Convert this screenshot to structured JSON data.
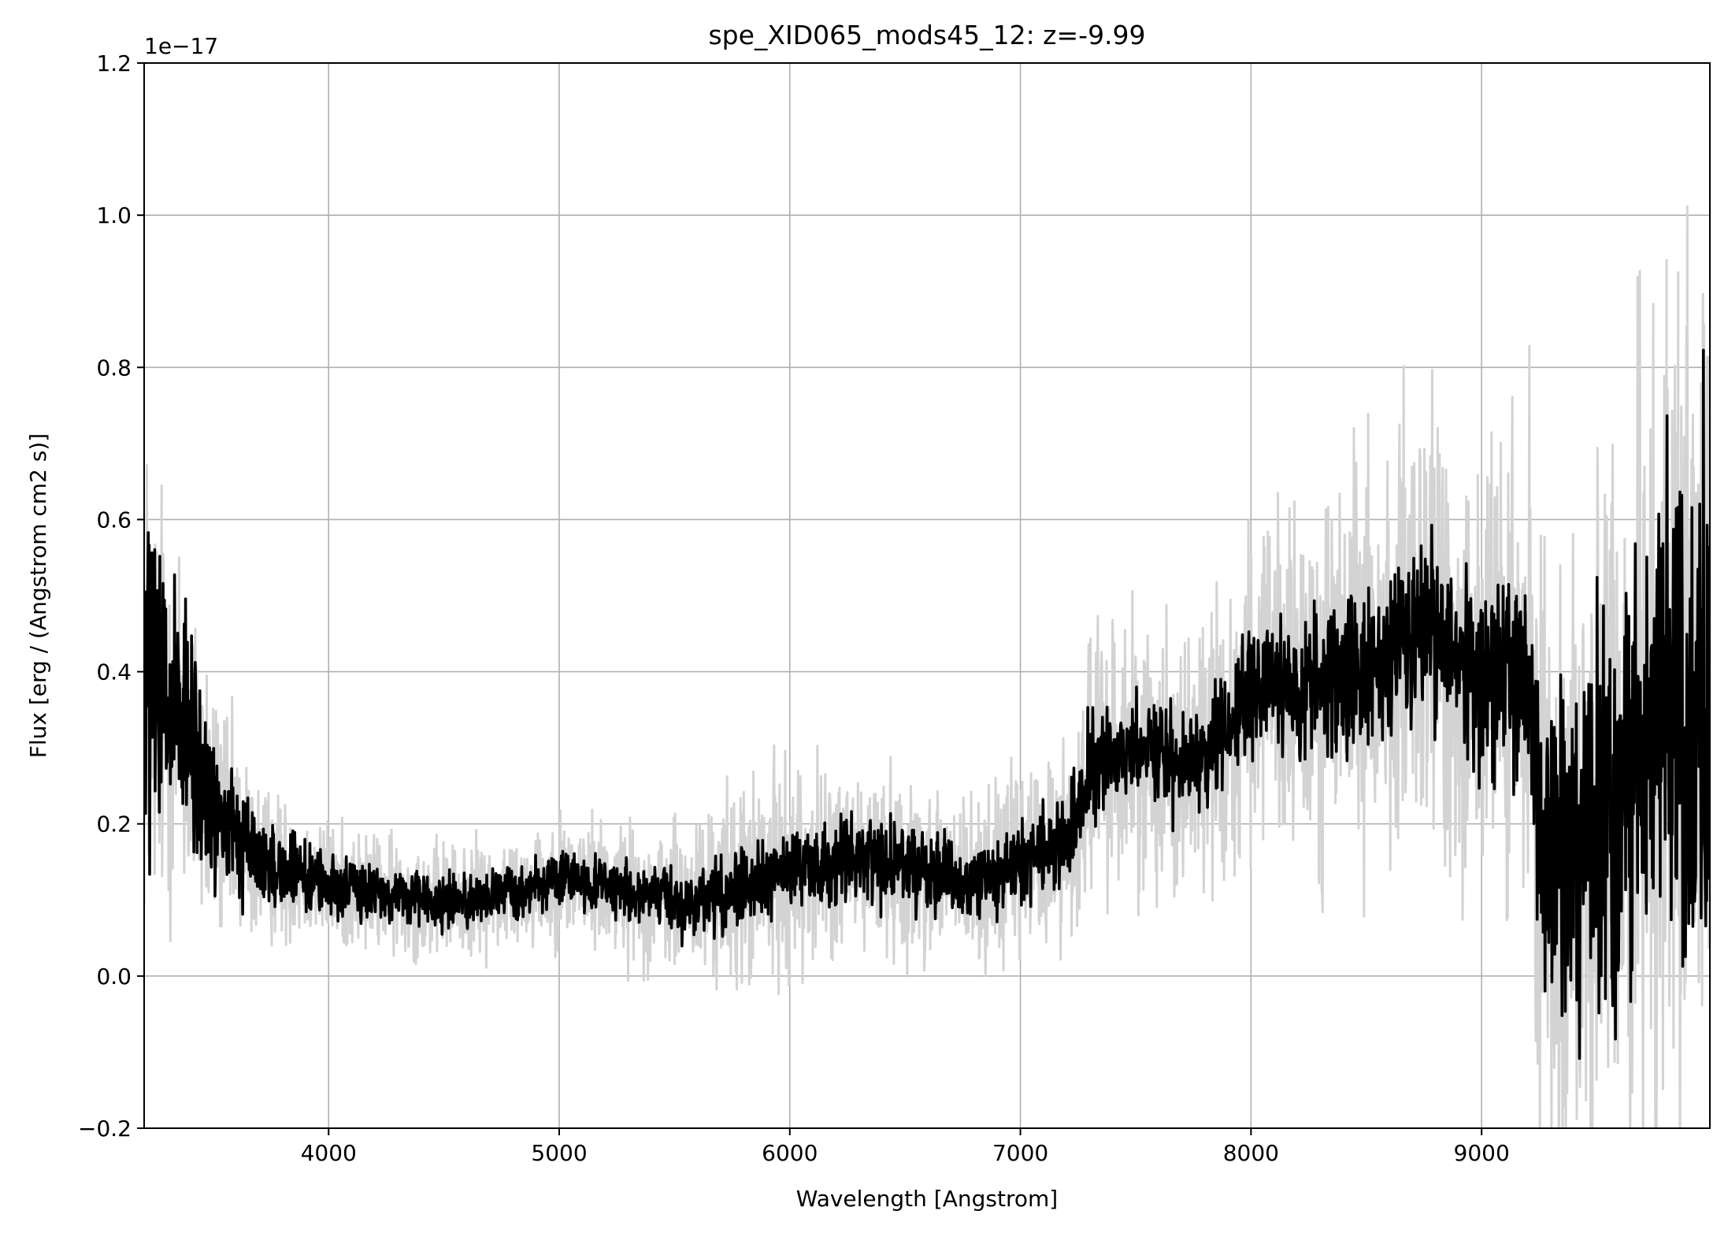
{
  "chart_data": {
    "type": "line",
    "title": "spe_XID065_mods45_12: z=-9.99",
    "xlabel": "Wavelength [Angstrom]",
    "ylabel": "Flux [erg / (Angstrom cm2 s)]",
    "y_offset_text": "1e−17",
    "xlim": [
      3200,
      9990
    ],
    "ylim": [
      -0.2,
      1.2
    ],
    "x_ticks": [
      4000,
      5000,
      6000,
      7000,
      8000,
      9000
    ],
    "y_ticks": [
      -0.2,
      0.0,
      0.2,
      0.4,
      0.6,
      0.8,
      1.0,
      1.2
    ],
    "x_tick_labels": [
      "4000",
      "5000",
      "6000",
      "7000",
      "8000",
      "9000"
    ],
    "y_tick_labels": [
      "−0.2",
      "0.0",
      "0.2",
      "0.4",
      "0.6",
      "0.8",
      "1.0",
      "1.2"
    ],
    "grid": true,
    "series": [
      {
        "role": "noisy-spectrum",
        "color": "#d3d3d3",
        "x": [
          3200,
          3300,
          3400,
          3500,
          3600,
          3700,
          3800,
          3900,
          4000,
          4200,
          4400,
          4600,
          4800,
          5000,
          5200,
          5400,
          5600,
          5800,
          6000,
          6200,
          6400,
          6600,
          6800,
          7000,
          7200,
          7250,
          7300,
          7500,
          7700,
          7900,
          8000,
          8200,
          8400,
          8600,
          8800,
          9000,
          9200,
          9250,
          9400,
          9600,
          9800,
          9990
        ],
        "y": [
          0.4,
          0.35,
          0.3,
          0.22,
          0.18,
          0.15,
          0.14,
          0.13,
          0.12,
          0.11,
          0.1,
          0.1,
          0.11,
          0.13,
          0.12,
          0.1,
          0.1,
          0.12,
          0.14,
          0.15,
          0.15,
          0.14,
          0.12,
          0.15,
          0.18,
          0.2,
          0.28,
          0.3,
          0.28,
          0.32,
          0.38,
          0.38,
          0.4,
          0.42,
          0.45,
          0.4,
          0.38,
          0.2,
          0.15,
          0.25,
          0.35,
          0.35
        ],
        "noise": [
          0.5,
          0.4,
          0.35,
          0.25,
          0.2,
          0.15,
          0.14,
          0.12,
          0.12,
          0.11,
          0.11,
          0.11,
          0.11,
          0.12,
          0.13,
          0.13,
          0.16,
          0.2,
          0.2,
          0.18,
          0.17,
          0.17,
          0.16,
          0.18,
          0.2,
          0.22,
          0.26,
          0.26,
          0.26,
          0.28,
          0.3,
          0.34,
          0.4,
          0.42,
          0.48,
          0.46,
          0.48,
          0.55,
          0.6,
          0.75,
          0.8,
          0.85
        ]
      },
      {
        "role": "smoothed-spectrum",
        "color": "#000000",
        "x": [
          3200,
          3300,
          3400,
          3500,
          3600,
          3700,
          3800,
          3900,
          4000,
          4200,
          4400,
          4600,
          4800,
          5000,
          5200,
          5400,
          5600,
          5800,
          6000,
          6200,
          6400,
          6600,
          6800,
          7000,
          7200,
          7250,
          7300,
          7500,
          7700,
          7900,
          8000,
          8200,
          8400,
          8600,
          8800,
          9000,
          9200,
          9250,
          9400,
          9600,
          9800,
          9990
        ],
        "y": [
          0.4,
          0.35,
          0.3,
          0.22,
          0.18,
          0.15,
          0.14,
          0.13,
          0.12,
          0.11,
          0.1,
          0.1,
          0.11,
          0.13,
          0.12,
          0.1,
          0.1,
          0.12,
          0.14,
          0.15,
          0.15,
          0.14,
          0.12,
          0.15,
          0.18,
          0.2,
          0.28,
          0.3,
          0.28,
          0.32,
          0.38,
          0.38,
          0.4,
          0.42,
          0.45,
          0.4,
          0.38,
          0.2,
          0.15,
          0.25,
          0.35,
          0.35
        ],
        "noise": [
          0.35,
          0.28,
          0.22,
          0.15,
          0.12,
          0.09,
          0.07,
          0.06,
          0.06,
          0.05,
          0.05,
          0.05,
          0.05,
          0.05,
          0.06,
          0.06,
          0.07,
          0.08,
          0.08,
          0.08,
          0.08,
          0.08,
          0.07,
          0.08,
          0.09,
          0.1,
          0.1,
          0.1,
          0.1,
          0.11,
          0.12,
          0.13,
          0.16,
          0.16,
          0.18,
          0.18,
          0.2,
          0.26,
          0.32,
          0.4,
          0.45,
          0.5
        ]
      }
    ]
  }
}
